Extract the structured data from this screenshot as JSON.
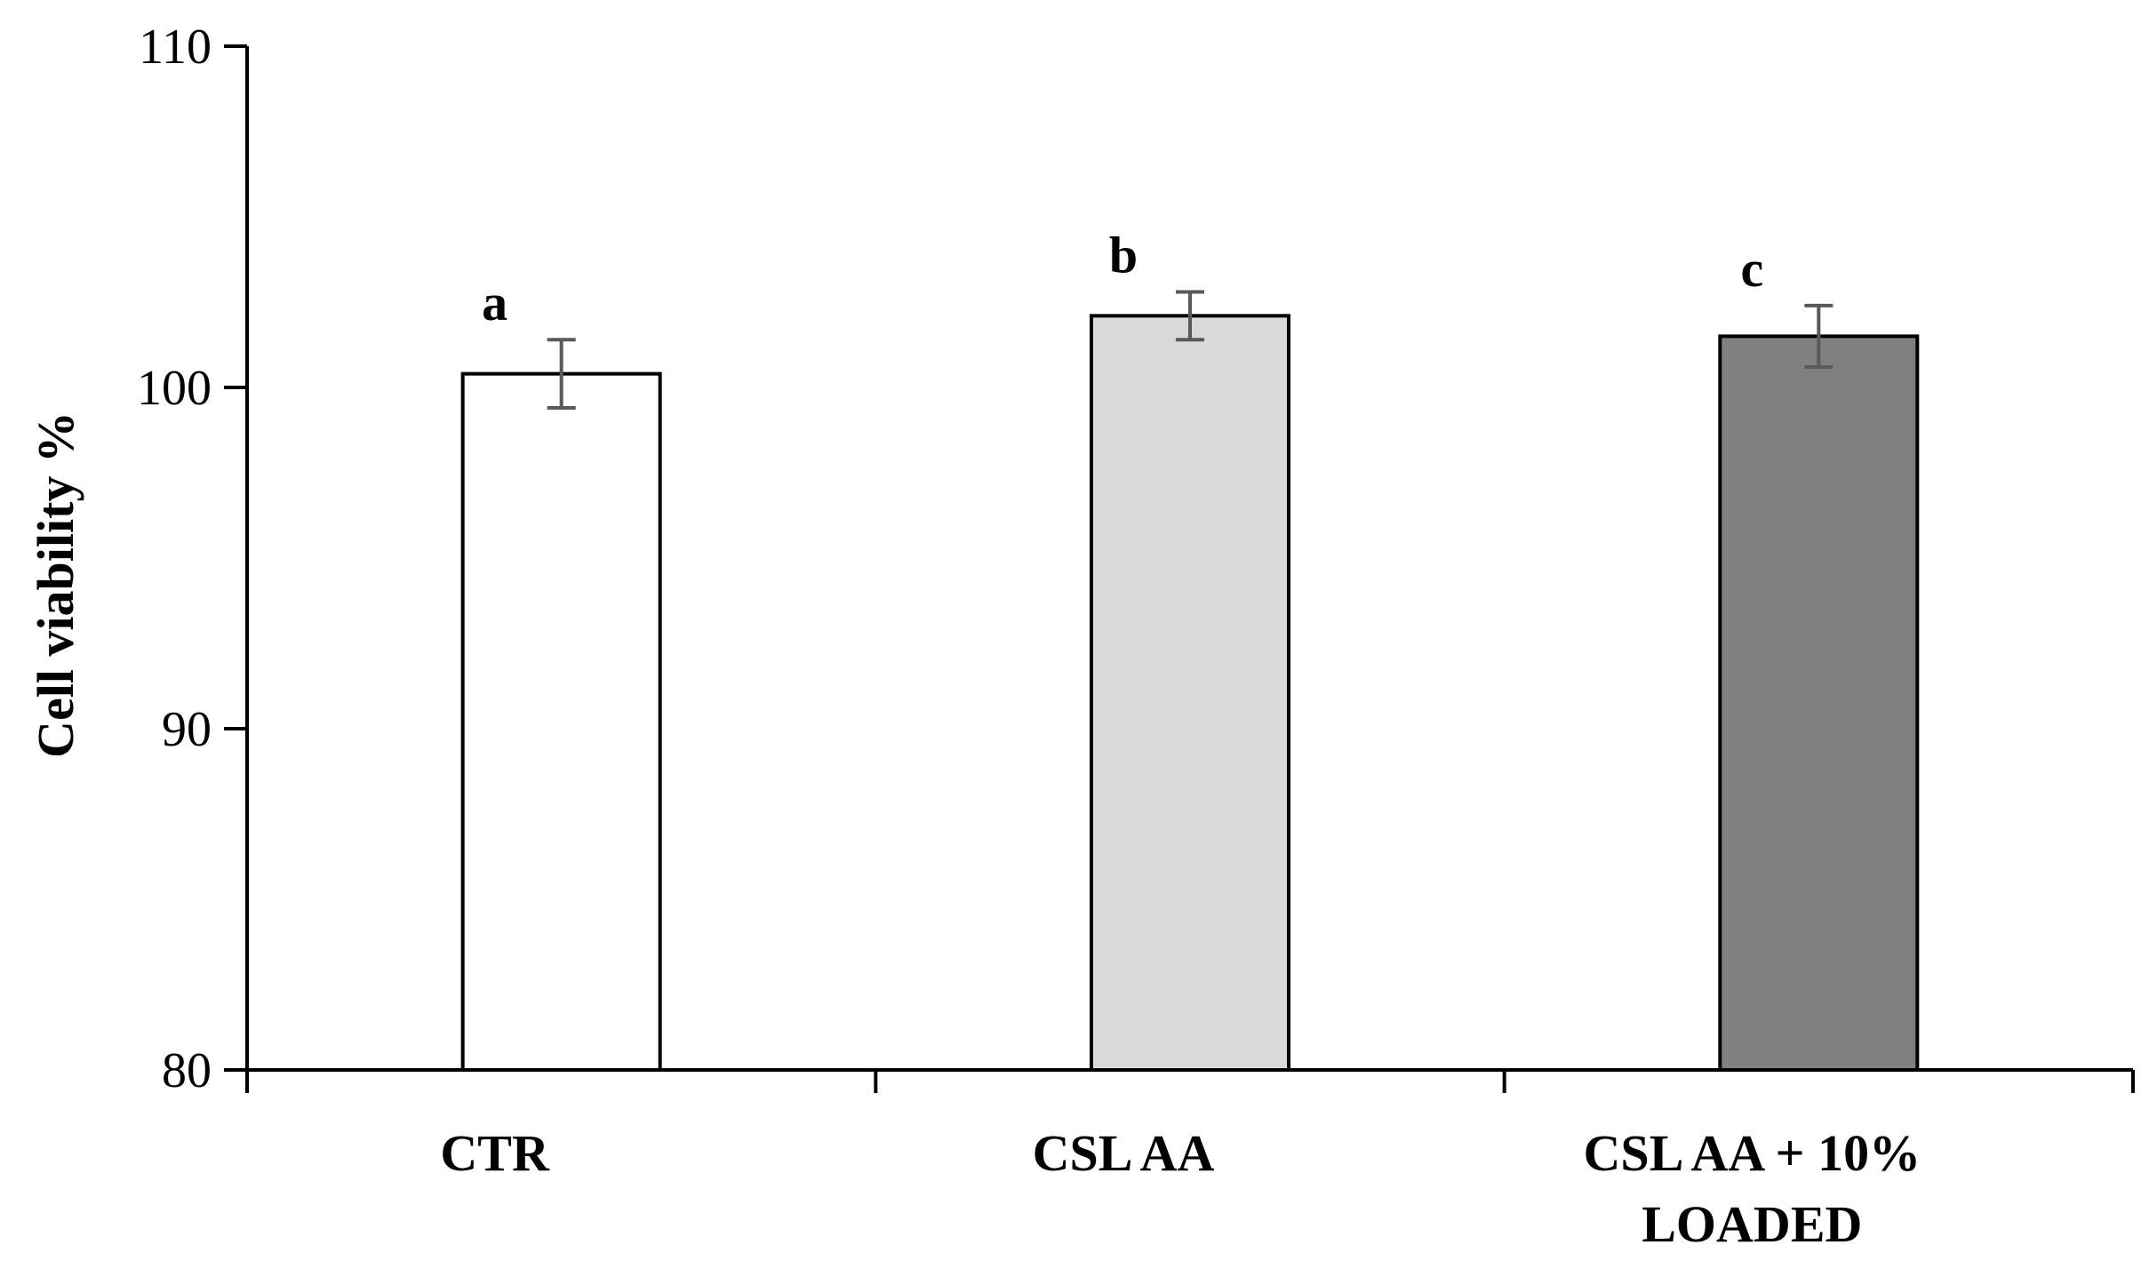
{
  "chart_data": {
    "type": "bar",
    "title": "",
    "xlabel": "",
    "ylabel": "Cell viability %",
    "ylim": [
      80,
      110
    ],
    "yticks": [
      80,
      90,
      100,
      110
    ],
    "grid": false,
    "categories": [
      {
        "lines": [
          "CTR"
        ]
      },
      {
        "lines": [
          "CSL AA"
        ]
      },
      {
        "lines": [
          "CSL AA + 10%",
          "LOADED"
        ]
      }
    ],
    "values": [
      100.4,
      102.1,
      101.5
    ],
    "errors": [
      1.0,
      0.7,
      0.9
    ],
    "significance_labels": [
      "a",
      "b",
      "c"
    ],
    "bar_colors": [
      "#ffffff",
      "#d9d9d9",
      "#808080"
    ],
    "error_bar_color": "#595959"
  }
}
